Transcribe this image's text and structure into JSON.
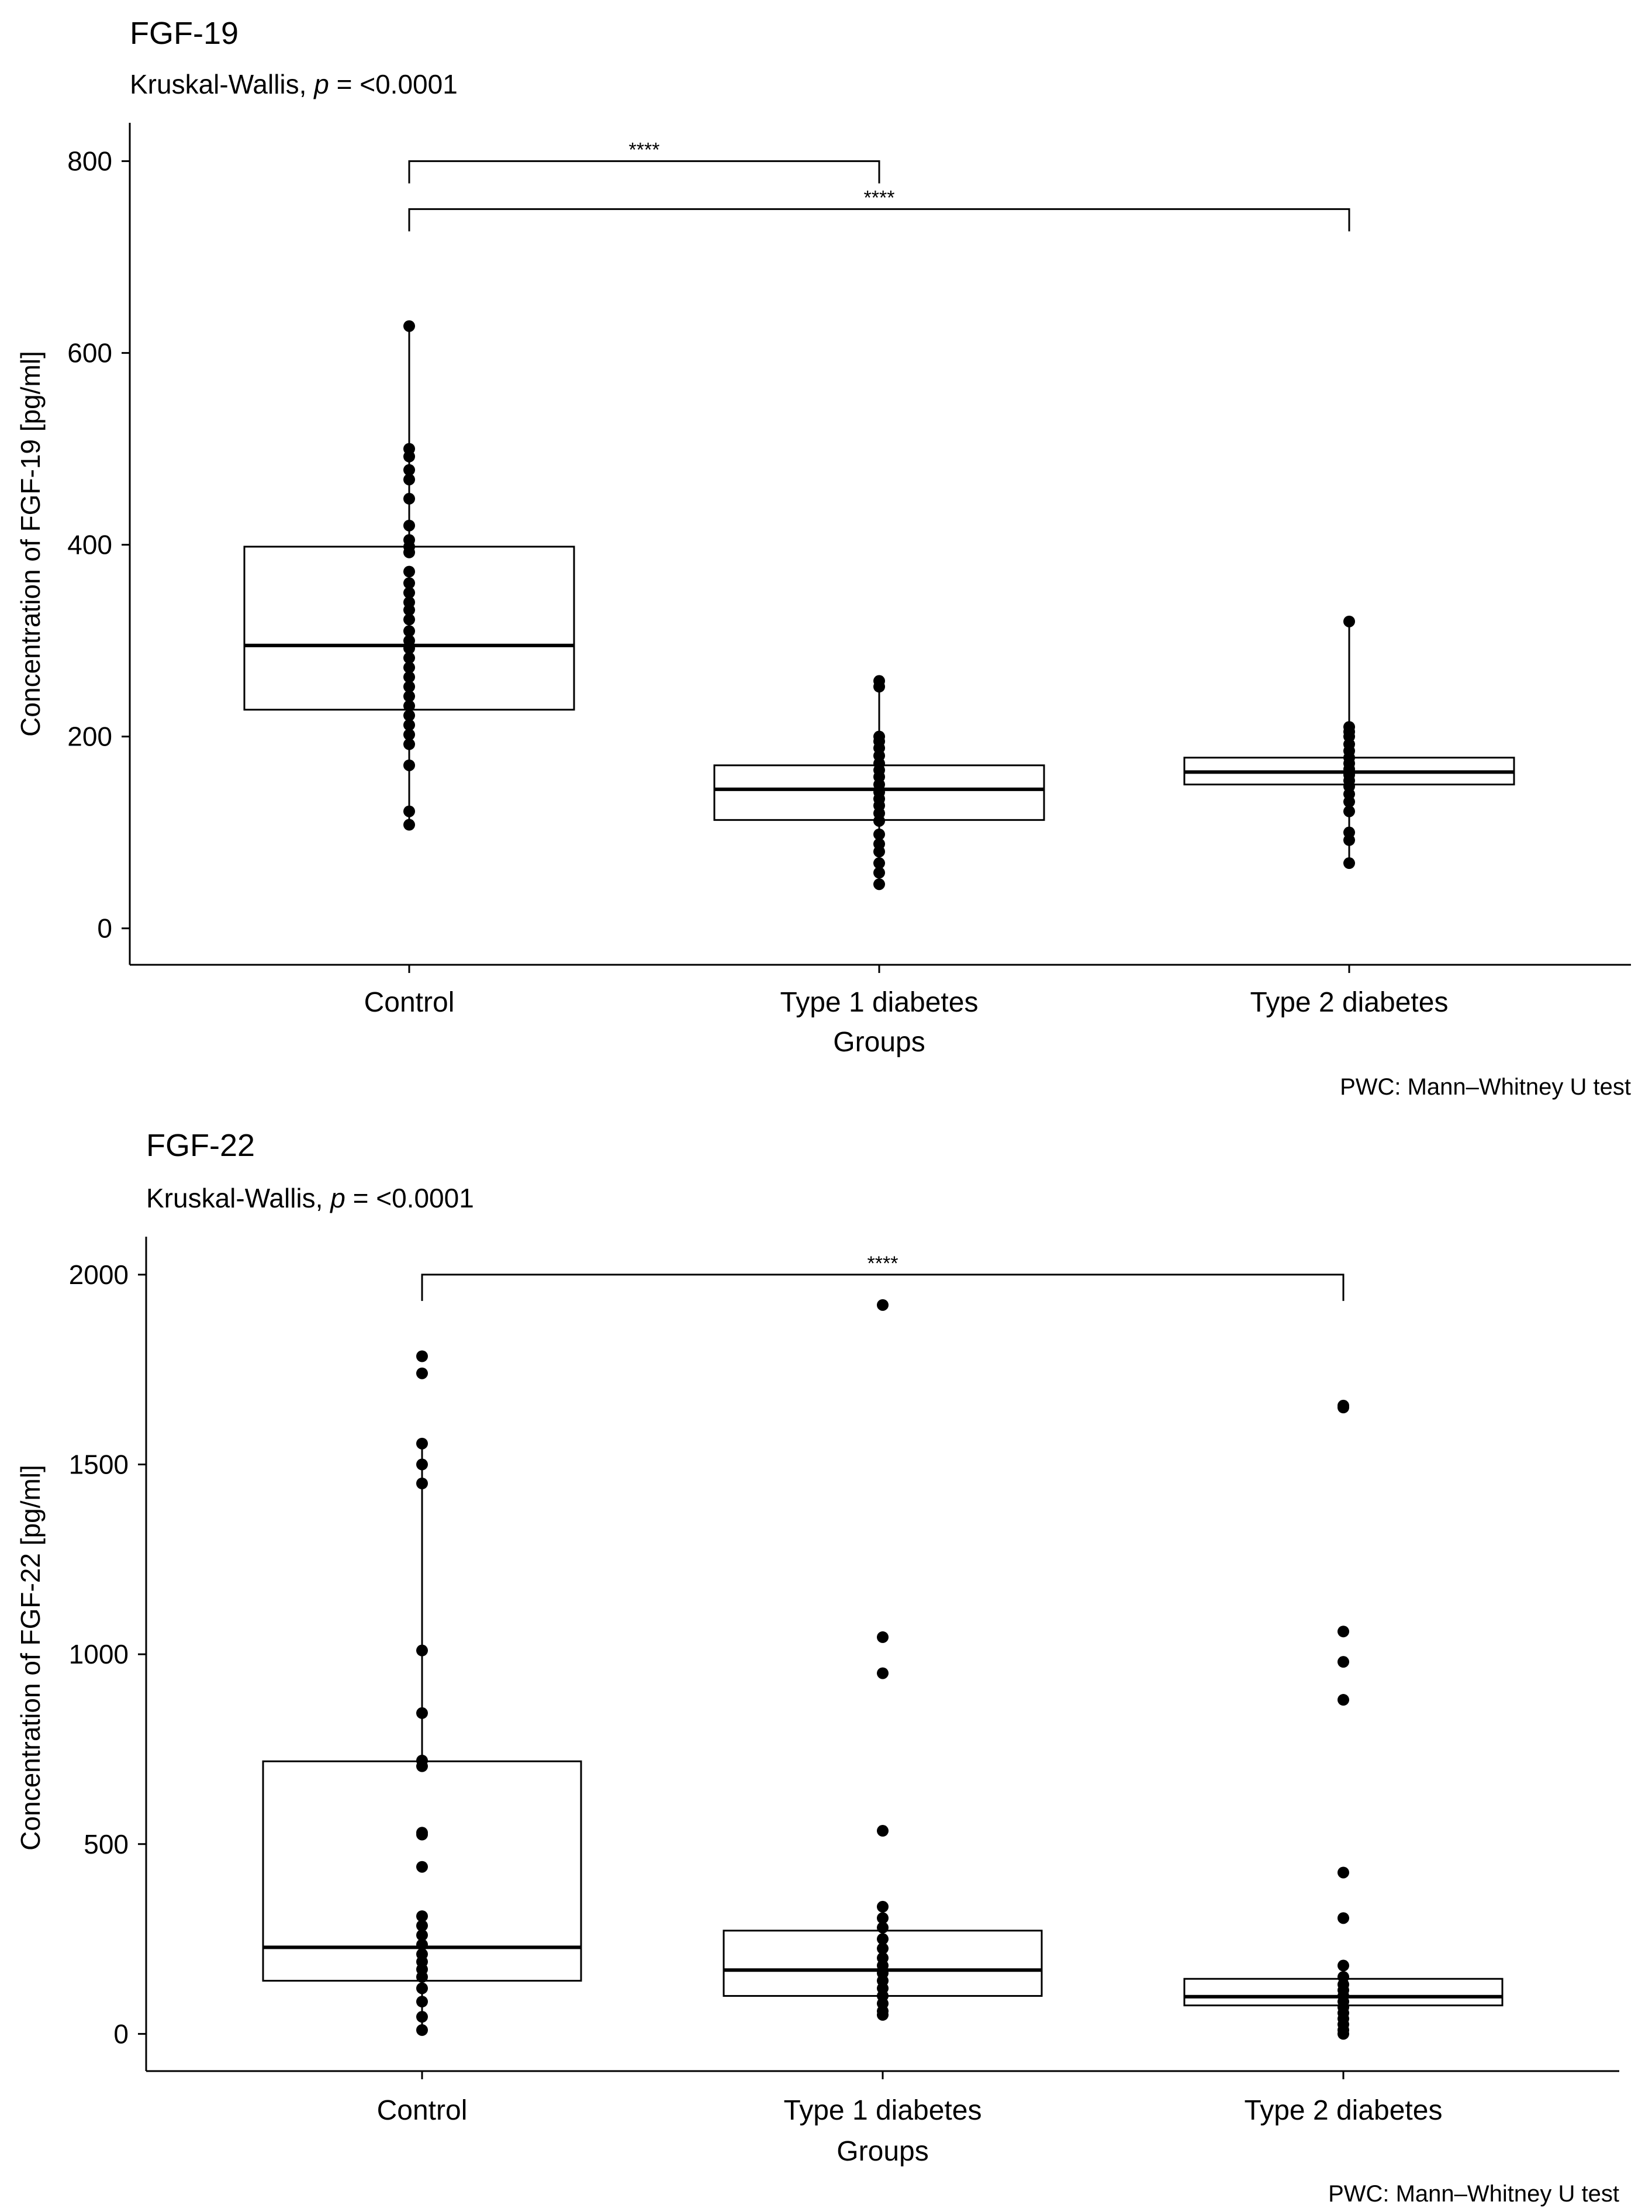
{
  "chart_data": [
    {
      "type": "box",
      "title": "FGF-19",
      "subtitle_prefix": "Kruskal-Wallis, ",
      "subtitle_p": "p",
      "subtitle_suffix": " = <0.0001",
      "xlabel": "Groups",
      "ylabel": "Concentration of FGF-19 [pg/ml]",
      "caption": "PWC: Mann–Whitney U test",
      "categories": [
        "Control",
        "Type 1 diabetes",
        "Type 2 diabetes"
      ],
      "ylim": [
        -38,
        840
      ],
      "yticks": [
        0,
        200,
        400,
        600,
        800
      ],
      "boxes": [
        {
          "group": "Control",
          "q1": 228,
          "median": 295,
          "q3": 398,
          "whisker_low": 108,
          "whisker_high": 628
        },
        {
          "group": "Type 1 diabetes",
          "q1": 113,
          "median": 145,
          "q3": 170,
          "whisker_low": 46,
          "whisker_high": 258
        },
        {
          "group": "Type 2 diabetes",
          "q1": 150,
          "median": 163,
          "q3": 178,
          "whisker_low": 68,
          "whisker_high": 320
        }
      ],
      "points": [
        [
          628,
          500,
          492,
          478,
          468,
          448,
          420,
          405,
          398,
          392,
          372,
          360,
          350,
          340,
          332,
          322,
          310,
          300,
          292,
          282,
          272,
          262,
          252,
          242,
          232,
          222,
          212,
          202,
          192,
          170,
          122,
          108
        ],
        [
          258,
          252,
          200,
          195,
          188,
          180,
          172,
          165,
          158,
          150,
          142,
          135,
          128,
          120,
          112,
          98,
          88,
          80,
          68,
          58,
          46
        ],
        [
          320,
          210,
          205,
          200,
          192,
          185,
          178,
          172,
          166,
          160,
          154,
          148,
          140,
          132,
          122,
          100,
          92,
          68
        ]
      ],
      "comparisons": [
        {
          "from": "Control",
          "to": "Type 1 diabetes",
          "label": "****",
          "y": 800
        },
        {
          "from": "Control",
          "to": "Type 2 diabetes",
          "label": "****",
          "y": 750
        }
      ]
    },
    {
      "type": "box",
      "title": "FGF-22",
      "subtitle_prefix": "Kruskal-Wallis, ",
      "subtitle_p": "p",
      "subtitle_suffix": " = <0.0001",
      "xlabel": "Groups",
      "ylabel": "Concentration of FGF-22 [pg/ml]",
      "caption": "PWC: Mann–Whitney U test",
      "categories": [
        "Control",
        "Type 1 diabetes",
        "Type 2 diabetes"
      ],
      "ylim": [
        -98,
        2100
      ],
      "yticks": [
        0,
        500,
        1000,
        1500,
        2000
      ],
      "boxes": [
        {
          "group": "Control",
          "q1": 140,
          "median": 228,
          "q3": 718,
          "whisker_low": 0,
          "whisker_high": 1550
        },
        {
          "group": "Type 1 diabetes",
          "q1": 100,
          "median": 168,
          "q3": 272,
          "whisker_low": 50,
          "whisker_high": 330
        },
        {
          "group": "Type 2 diabetes",
          "q1": 75,
          "median": 98,
          "q3": 145,
          "whisker_low": 0,
          "whisker_high": 180
        }
      ],
      "points": [
        [
          1785,
          1740,
          1555,
          1500,
          1450,
          1010,
          845,
          720,
          705,
          530,
          525,
          440,
          310,
          285,
          260,
          235,
          210,
          190,
          170,
          150,
          120,
          85,
          45,
          10
        ],
        [
          1920,
          1045,
          950,
          535,
          335,
          305,
          280,
          250,
          225,
          200,
          180,
          160,
          140,
          120,
          100,
          80,
          60,
          50
        ],
        [
          1655,
          1650,
          1060,
          980,
          880,
          425,
          305,
          180,
          150,
          130,
          115,
          100,
          85,
          70,
          55,
          40,
          25,
          10,
          0
        ]
      ],
      "comparisons": [
        {
          "from": "Control",
          "to": "Type 2 diabetes",
          "label": "****",
          "y": 2000
        }
      ]
    }
  ]
}
